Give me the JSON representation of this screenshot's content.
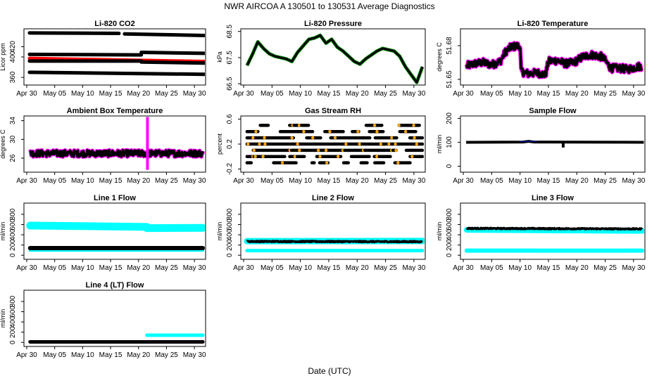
{
  "figure": {
    "title": "NWR   AIRCOA A   130501 to 130531   Average Diagnostics",
    "xlabel": "Date (UTC)"
  },
  "x_ticks": [
    "Apr 30",
    "May 05",
    "May 10",
    "May 15",
    "May 20",
    "May 25",
    "May 30"
  ],
  "x_range_days": [
    -0.5,
    32
  ],
  "colors": {
    "black": "#000000",
    "red": "#ff0000",
    "green": "#008800",
    "magenta": "#ff00ff",
    "orange": "#ffa500",
    "cyan": "#00ffff",
    "blue": "#0000cc"
  },
  "chart_data": [
    {
      "type": "scatter",
      "title": "Li-820 CO2",
      "ylabel": "Licor ppm",
      "ylim": [
        345,
        455
      ],
      "y_ticks": [
        360,
        400,
        420
      ],
      "series": [
        {
          "name": "high",
          "color": "black",
          "kind": "band",
          "segments": [
            [
              0.5,
              447,
              16.5,
              446
            ],
            [
              17.5,
              445,
              31.8,
              442
            ]
          ]
        },
        {
          "name": "upper",
          "color": "black",
          "kind": "band",
          "segments": [
            [
              0.5,
              405,
              20.5,
              404
            ],
            [
              20.5,
              409,
              31.8,
              407
            ]
          ]
        },
        {
          "name": "cal",
          "color": "red",
          "kind": "band",
          "segments": [
            [
              0.5,
              397,
              31.8,
              391
            ]
          ]
        },
        {
          "name": "mid",
          "color": "black",
          "kind": "band",
          "segments": [
            [
              0.5,
              392,
              20.5,
              392
            ],
            [
              20.5,
              390,
              31.8,
              388
            ]
          ]
        },
        {
          "name": "low",
          "color": "black",
          "kind": "band",
          "segments": [
            [
              0.5,
              370,
              31.8,
              366
            ]
          ]
        }
      ]
    },
    {
      "type": "line",
      "title": "Li-820 Pressure",
      "ylabel": "kPa",
      "ylim": [
        66.45,
        68.6
      ],
      "y_ticks": [
        66.5,
        67.5,
        68.5
      ],
      "series": [
        {
          "name": "pressure",
          "color": "black",
          "kind": "line",
          "halo": "green",
          "width": 3,
          "x": [
            0.6,
            1.5,
            2.5,
            3.5,
            4.5,
            5.5,
            6.5,
            7.5,
            8.5,
            9.5,
            10.5,
            11.5,
            12.5,
            13.5,
            14.5,
            15.5,
            16.5,
            17.5,
            18.5,
            19.5,
            20.5,
            21.5,
            22.5,
            23.5,
            24.5,
            25.5,
            26.5,
            27.5,
            28.5,
            29.5,
            30.5,
            31.5
          ],
          "y": [
            67.2,
            67.6,
            68.1,
            67.85,
            67.65,
            67.55,
            67.5,
            67.45,
            67.35,
            67.7,
            67.95,
            68.2,
            68.25,
            68.35,
            68.05,
            68.2,
            67.9,
            67.75,
            67.55,
            67.35,
            67.25,
            67.45,
            67.6,
            67.75,
            67.85,
            67.8,
            67.75,
            67.55,
            67.15,
            66.85,
            66.55,
            67.15
          ]
        }
      ]
    },
    {
      "type": "scatter",
      "title": "Li-820 Temperature",
      "ylabel": "degrees C",
      "ylim": [
        51.645,
        51.695
      ],
      "y_ticks": [
        51.65,
        51.68
      ],
      "tick_labels": [
        "51.65",
        "51.68"
      ],
      "series": [
        {
          "name": "temperature",
          "color": "black",
          "kind": "noise",
          "halo": "magenta",
          "x": [
            0.6,
            2,
            3.5,
            5,
            6.5,
            7.5,
            8.5,
            10,
            10.2,
            11.5,
            13,
            14.5,
            15,
            16.5,
            18,
            19.5,
            21,
            22.5,
            23.5,
            24.5,
            26,
            27.5,
            29,
            30.5,
            31.5
          ],
          "y": [
            51.662,
            51.664,
            51.665,
            51.663,
            51.666,
            51.675,
            51.679,
            51.68,
            51.657,
            51.655,
            51.656,
            51.654,
            51.666,
            51.667,
            51.664,
            51.665,
            51.67,
            51.672,
            51.671,
            51.67,
            51.66,
            51.66,
            51.659,
            51.661,
            51.662
          ],
          "amp": 0.007
        }
      ]
    },
    {
      "type": "scatter",
      "title": "Ambient Box Temperature",
      "ylabel": "degrees C",
      "ylim": [
        23,
        35
      ],
      "y_ticks": [
        26,
        30,
        34
      ],
      "series": [
        {
          "name": "box_temp",
          "color": "black",
          "kind": "noise",
          "halo": "magenta",
          "x": [
            0.6,
            31.5
          ],
          "y": [
            27.0,
            27.0
          ],
          "amp": 1.4
        },
        {
          "name": "spike",
          "color": "magenta",
          "kind": "vline",
          "x": 21.6,
          "y0": 23.5,
          "y1": 34.8
        }
      ]
    },
    {
      "type": "scatter",
      "title": "Gas Stream RH",
      "ylabel": "percent",
      "ylim": [
        -0.25,
        0.65
      ],
      "y_ticks": [
        -0.2,
        0.2,
        0.6
      ],
      "tick_labels": [
        "-0.2",
        "0.2",
        "0.6"
      ],
      "series": [
        {
          "name": "rh",
          "color": "black",
          "kind": "levels",
          "levels": [
            -0.1,
            0.0,
            0.1,
            0.2,
            0.3,
            0.4,
            0.5
          ],
          "accent": "orange"
        }
      ]
    },
    {
      "type": "line",
      "title": "Sample Flow",
      "ylabel": "ml/min",
      "ylim": [
        -25,
        210
      ],
      "y_ticks": [
        0,
        100,
        200
      ],
      "series": [
        {
          "name": "flow",
          "color": "black",
          "kind": "line",
          "width": 4,
          "x": [
            0.5,
            10.5,
            11.5,
            12.5,
            31.8
          ],
          "y": [
            100,
            101,
            104,
            101,
            100
          ]
        },
        {
          "name": "blue_trace",
          "color": "blue",
          "kind": "line",
          "width": 1,
          "x": [
            10,
            13
          ],
          "y": [
            103,
            104
          ]
        },
        {
          "name": "dip",
          "color": "black",
          "kind": "vline",
          "x": 17.6,
          "y0": 78,
          "y1": 100
        }
      ]
    },
    {
      "type": "scatter",
      "title": "Line 1 Flow",
      "ylabel": "ml/min",
      "ylim": [
        -80,
        1020
      ],
      "y_ticks": [
        0,
        200,
        400,
        600,
        800
      ],
      "series": [
        {
          "name": "cyan_high",
          "color": "cyan",
          "kind": "band",
          "segments": [
            [
              0.6,
              580,
              21.5,
              555
            ],
            [
              21.5,
              530,
              31.5,
              535
            ]
          ],
          "width": 11
        },
        {
          "name": "cyan_low",
          "color": "cyan",
          "kind": "band",
          "segments": [
            [
              0.6,
              95,
              31.5,
              95
            ]
          ],
          "width": 4
        },
        {
          "name": "black",
          "color": "black",
          "kind": "band",
          "segments": [
            [
              0.6,
              140,
              31.5,
              140
            ]
          ],
          "width": 6
        }
      ]
    },
    {
      "type": "scatter",
      "title": "Line 2 Flow",
      "ylabel": "ml/min",
      "ylim": [
        -80,
        1020
      ],
      "y_ticks": [
        0,
        200,
        400,
        600,
        800
      ],
      "series": [
        {
          "name": "cyan_band",
          "color": "cyan",
          "kind": "band",
          "segments": [
            [
              0.6,
              275,
              31.5,
              280
            ]
          ],
          "width": 9
        },
        {
          "name": "black",
          "color": "black",
          "kind": "noise",
          "x": [
            0.6,
            31.5
          ],
          "y": [
            270,
            265
          ],
          "amp": 22
        },
        {
          "name": "cyan_low",
          "color": "cyan",
          "kind": "band",
          "segments": [
            [
              0.6,
              90,
              31.5,
              90
            ]
          ],
          "width": 5
        }
      ]
    },
    {
      "type": "scatter",
      "title": "Line 3 Flow",
      "ylabel": "ml/min",
      "ylim": [
        -80,
        1020
      ],
      "y_ticks": [
        0,
        200,
        400,
        600,
        800
      ],
      "series": [
        {
          "name": "cyan_band",
          "color": "cyan",
          "kind": "band",
          "segments": [
            [
              0.6,
              495,
              31.5,
              475
            ]
          ],
          "width": 8
        },
        {
          "name": "black",
          "color": "black",
          "kind": "noise",
          "x": [
            0.6,
            31.5
          ],
          "y": [
            525,
            515
          ],
          "amp": 20
        },
        {
          "name": "cyan_low",
          "color": "cyan",
          "kind": "band",
          "segments": [
            [
              0.6,
              90,
              31.5,
              90
            ]
          ],
          "width": 6
        }
      ]
    },
    {
      "type": "scatter",
      "title": "Line 4 (LT) Flow",
      "ylabel": "ml/min",
      "ylim": [
        -80,
        1020
      ],
      "y_ticks": [
        0,
        200,
        400,
        600,
        800
      ],
      "series": [
        {
          "name": "black",
          "color": "black",
          "kind": "band",
          "segments": [
            [
              0.6,
              10,
              31.5,
              10
            ]
          ],
          "width": 5
        },
        {
          "name": "cyan",
          "color": "cyan",
          "kind": "band",
          "segments": [
            [
              21.5,
              140,
              31.5,
              140
            ]
          ],
          "width": 5
        }
      ]
    }
  ]
}
